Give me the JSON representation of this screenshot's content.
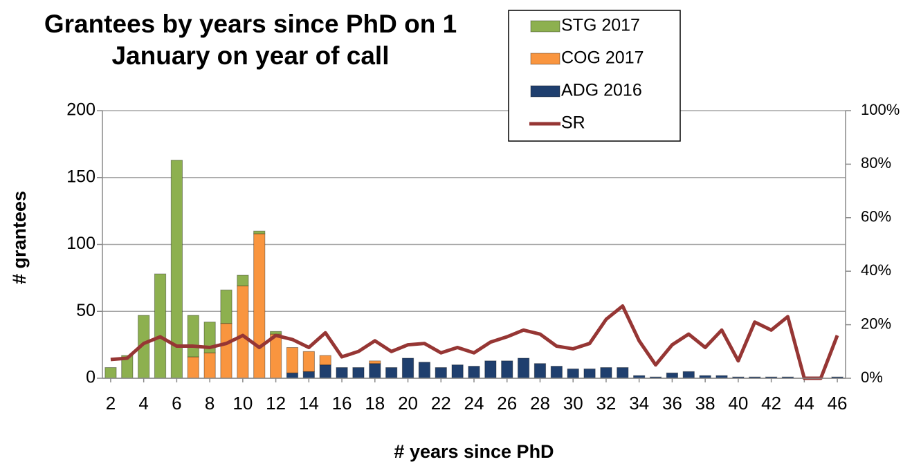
{
  "chart_data": {
    "type": "bar",
    "title": "Grantees by years since PhD on 1 January on year of call",
    "x_label": "# years since PhD",
    "y_label": "# grantees",
    "stacked": true,
    "x": [
      2,
      3,
      4,
      5,
      6,
      7,
      8,
      9,
      10,
      11,
      12,
      13,
      14,
      15,
      16,
      17,
      18,
      19,
      20,
      21,
      22,
      23,
      24,
      25,
      26,
      27,
      28,
      29,
      30,
      31,
      32,
      33,
      34,
      35,
      36,
      37,
      38,
      39,
      40,
      41,
      42,
      43,
      44,
      45,
      46
    ],
    "xlim": [
      1.5,
      46.5
    ],
    "xticks": [
      2,
      4,
      6,
      8,
      10,
      12,
      14,
      16,
      18,
      20,
      22,
      24,
      26,
      28,
      30,
      32,
      34,
      36,
      38,
      40,
      42,
      44,
      46
    ],
    "ylim": [
      0,
      200
    ],
    "yticks": [
      0,
      50,
      100,
      150,
      200
    ],
    "y2lim": [
      0,
      100
    ],
    "y2ticks": [
      {
        "value": 0,
        "label": "0%"
      },
      {
        "value": 20,
        "label": "20%"
      },
      {
        "value": 40,
        "label": "40%"
      },
      {
        "value": 60,
        "label": "60%"
      },
      {
        "value": 80,
        "label": "80%"
      },
      {
        "value": 100,
        "label": "100%"
      }
    ],
    "grid": true,
    "legend": "top-right",
    "series": [
      {
        "name": "ADG 2016",
        "type": "bar",
        "color": "#1f3f6e",
        "values": [
          0,
          0,
          0,
          0,
          0,
          0,
          0,
          0,
          0,
          0,
          0,
          4,
          5,
          10,
          8,
          8,
          11,
          8,
          15,
          12,
          8,
          10,
          9,
          13,
          13,
          15,
          11,
          9,
          7,
          7,
          8,
          8,
          2,
          1,
          4,
          5,
          2,
          2,
          1,
          1,
          1,
          1,
          0,
          0,
          1
        ]
      },
      {
        "name": "COG 2017",
        "type": "bar",
        "color": "#f9953f",
        "values": [
          0,
          0,
          0,
          0,
          0,
          16,
          19,
          41,
          69,
          108,
          33,
          19,
          15,
          7,
          0,
          0,
          2,
          0,
          0,
          0,
          0,
          0,
          0,
          0,
          0,
          0,
          0,
          0,
          0,
          0,
          0,
          0,
          0,
          0,
          0,
          0,
          0,
          0,
          0,
          0,
          0,
          0,
          0,
          0,
          0
        ]
      },
      {
        "name": "STG 2017",
        "type": "bar",
        "color": "#8db04f",
        "values": [
          8,
          17,
          47,
          78,
          163,
          31,
          23,
          25,
          8,
          2,
          2,
          0,
          0,
          0,
          0,
          0,
          0,
          0,
          0,
          0,
          0,
          0,
          0,
          0,
          0,
          0,
          0,
          0,
          0,
          0,
          0,
          0,
          0,
          0,
          0,
          0,
          0,
          0,
          0,
          0,
          0,
          0,
          0,
          0,
          0
        ]
      },
      {
        "name": "SR",
        "type": "line",
        "axis": "y2",
        "color": "#963634",
        "values": [
          7,
          7.5,
          13,
          15.5,
          12,
          12,
          11.5,
          13,
          16,
          11.5,
          16,
          14.5,
          11.5,
          17,
          8,
          10,
          14,
          10,
          12.5,
          13,
          9.5,
          11.5,
          9.5,
          13.5,
          15.5,
          18,
          16.5,
          12,
          11,
          13,
          22,
          27,
          14,
          5,
          12.5,
          16.5,
          11.5,
          18,
          6.5,
          21,
          18,
          23,
          0,
          0,
          16
        ]
      }
    ]
  }
}
